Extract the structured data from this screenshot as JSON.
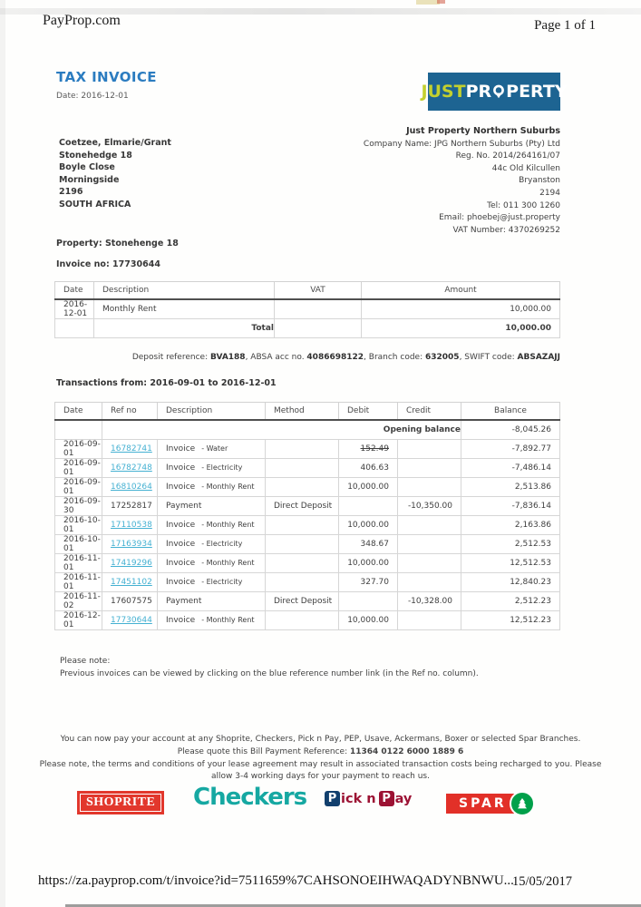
{
  "print_header": {
    "left": "PayProp.com",
    "right": "Page 1 of 1"
  },
  "doc": {
    "title": "TAX INVOICE",
    "date_line": "Date: 2016-12-01",
    "logo": {
      "just": "JUST",
      "property_pre": "PR",
      "property_post": "PERTY",
      "bg": "#1d6492",
      "just_color": "#c3d02e"
    },
    "agency": {
      "name": "Just Property Northern Suburbs",
      "lines": [
        "Company Name: JPG Northern Suburbs (Pty) Ltd",
        "Reg. No. 2014/264161/07",
        "44c Old Kilcullen",
        "Bryanston",
        "2194",
        "Tel: 011 300 1260",
        "Email: phoebej@just.property",
        "VAT Number: 4370269252"
      ]
    },
    "customer_lines": [
      "Coetzee, Elmarie/Grant",
      "Stonehedge 18",
      "Boyle Close",
      "Morningside",
      "2196",
      "SOUTH AFRICA"
    ],
    "property_line": "Property: Stonehenge 18",
    "invoice_no_line": "Invoice no: 17730644"
  },
  "invoice_table": {
    "headers": [
      "Date",
      "Description",
      "VAT",
      "Amount"
    ],
    "rows": [
      {
        "date": "2016-12-01",
        "description": "Monthly Rent",
        "vat": "",
        "amount": "10,000.00"
      }
    ],
    "total_label": "Total",
    "total_amount": "10,000.00"
  },
  "deposit_segments": [
    {
      "t": "Deposit reference: ",
      "b": false
    },
    {
      "t": "BVA188",
      "b": true
    },
    {
      "t": ", ABSA acc no. ",
      "b": false
    },
    {
      "t": "4086698122",
      "b": true
    },
    {
      "t": ", Branch code: ",
      "b": false
    },
    {
      "t": "632005",
      "b": true
    },
    {
      "t": ", SWIFT code: ",
      "b": false
    },
    {
      "t": "ABSAZAJJ",
      "b": true
    }
  ],
  "transactions": {
    "title": "Transactions from: 2016-09-01 to 2016-12-01",
    "headers": [
      "Date",
      "Ref no",
      "Description",
      "Method",
      "Debit",
      "Credit",
      "Balance"
    ],
    "opening_label": "Opening balance",
    "opening_balance": "-8,045.26",
    "rows": [
      {
        "date": "2016-09-01",
        "ref": "16782741",
        "link": true,
        "desc": "Invoice",
        "desc2": "- Water",
        "method": "",
        "debit": "152.49",
        "strike": true,
        "credit": "",
        "balance": "-7,892.77"
      },
      {
        "date": "2016-09-01",
        "ref": "16782748",
        "link": true,
        "desc": "Invoice",
        "desc2": "- Electricity",
        "method": "",
        "debit": "406.63",
        "credit": "",
        "balance": "-7,486.14"
      },
      {
        "date": "2016-09-01",
        "ref": "16810264",
        "link": true,
        "desc": "Invoice",
        "desc2": "- Monthly Rent",
        "method": "",
        "debit": "10,000.00",
        "credit": "",
        "balance": "2,513.86"
      },
      {
        "date": "2016-09-30",
        "ref": "17252817",
        "link": false,
        "desc": "Payment",
        "desc2": "",
        "method": "Direct Deposit",
        "debit": "",
        "credit": "-10,350.00",
        "balance": "-7,836.14"
      },
      {
        "date": "2016-10-01",
        "ref": "17110538",
        "link": true,
        "desc": "Invoice",
        "desc2": "- Monthly Rent",
        "method": "",
        "debit": "10,000.00",
        "credit": "",
        "balance": "2,163.86"
      },
      {
        "date": "2016-10-01",
        "ref": "17163934",
        "link": true,
        "desc": "Invoice",
        "desc2": "- Electricity",
        "method": "",
        "debit": "348.67",
        "credit": "",
        "balance": "2,512.53"
      },
      {
        "date": "2016-11-01",
        "ref": "17419296",
        "link": true,
        "desc": "Invoice",
        "desc2": "- Monthly Rent",
        "method": "",
        "debit": "10,000.00",
        "credit": "",
        "balance": "12,512.53"
      },
      {
        "date": "2016-11-01",
        "ref": "17451102",
        "link": true,
        "desc": "Invoice",
        "desc2": "- Electricity",
        "method": "",
        "debit": "327.70",
        "credit": "",
        "balance": "12,840.23"
      },
      {
        "date": "2016-11-02",
        "ref": "17607575",
        "link": false,
        "desc": "Payment",
        "desc2": "",
        "method": "Direct Deposit",
        "debit": "",
        "credit": "-10,328.00",
        "balance": "2,512.23"
      },
      {
        "date": "2016-12-01",
        "ref": "17730644",
        "link": true,
        "desc": "Invoice",
        "desc2": "- Monthly Rent",
        "method": "",
        "debit": "10,000.00",
        "credit": "",
        "balance": "12,512.23"
      }
    ]
  },
  "notes": {
    "line1": "Please note:",
    "line2": "Previous invoices can be viewed by clicking on the blue reference number link (in the Ref no. column)."
  },
  "payment_info": {
    "line1": "You can now pay your account at any Shoprite, Checkers, Pick n Pay, PEP, Usave, Ackermans, Boxer or selected Spar Branches.",
    "line2_prefix": "Please quote this Bill Payment Reference: ",
    "line2_ref": "11364 0122 6000 1889 6",
    "line3": "Please note, the terms and conditions of your lease agreement may result in associated transaction costs being recharged to you. Please",
    "line4": "allow 3-4 working days for your payment to reach us."
  },
  "retailers": {
    "shoprite": {
      "label": "SHOPRITE",
      "bg": "#e2372c"
    },
    "checkers": {
      "label": "Checkers",
      "color": "#16a8a2"
    },
    "picknpay": {
      "p1": "P",
      "mid": "ick n",
      "p2": "P",
      "end": "ay",
      "navy": "#123f6d",
      "red": "#9c1233"
    },
    "spar": {
      "label": "SPAR",
      "bg": "#e23028",
      "green": "#00a04a"
    }
  },
  "print_footer": {
    "url": "https://za.payprop.com/t/invoice?id=7511659%7CAHSONOEIHWAQADYNBNWU...",
    "date": "15/05/2017"
  }
}
